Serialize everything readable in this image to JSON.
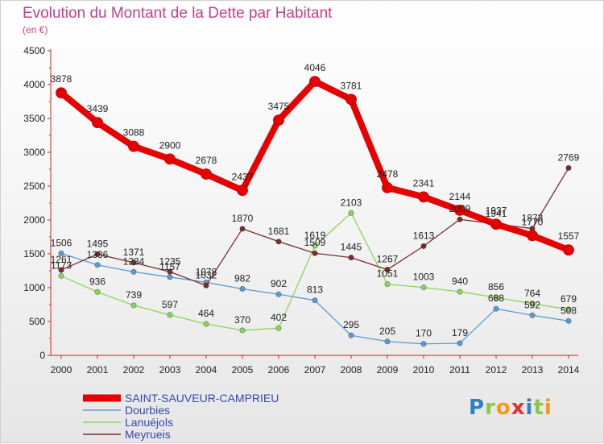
{
  "header": {
    "title": "Evolution du Montant de la Dette par Habitant",
    "subtitle": "(en €)"
  },
  "logo": {
    "text": "Proxiti",
    "colors": [
      "#2f7fc1",
      "#8ac640",
      "#f39a1c",
      "#e5312e",
      "#2f7fc1",
      "#8ac640",
      "#f39a1c"
    ]
  },
  "chart_data": {
    "type": "line",
    "title": "Evolution du Montant de la Dette par Habitant",
    "subtitle": "(en €)",
    "x": [
      "2000",
      "2001",
      "2002",
      "2003",
      "2004",
      "2005",
      "2006",
      "2007",
      "2008",
      "2009",
      "2010",
      "2011",
      "2012",
      "2013",
      "2014"
    ],
    "ylim": [
      0,
      4500
    ],
    "yticks": [
      0,
      500,
      1000,
      1500,
      2000,
      2500,
      3000,
      3500,
      4000,
      4500
    ],
    "grid": false,
    "legend": "bottom-left",
    "series": [
      {
        "name": "SAINT-SAUVEUR-CAMPRIEU",
        "color": "#e60000",
        "values": [
          3878,
          3439,
          3088,
          2900,
          2678,
          2437,
          3475,
          4046,
          3781,
          2478,
          2341,
          2144,
          1937,
          1770,
          1557
        ]
      },
      {
        "name": "Dourbies",
        "color": "#5b9bd5",
        "values": [
          1506,
          1336,
          1234,
          1157,
          1078,
          982,
          902,
          813,
          295,
          205,
          170,
          179,
          688,
          592,
          508
        ]
      },
      {
        "name": "Lanuéjols",
        "color": "#8cd45a",
        "values": [
          1173,
          936,
          739,
          597,
          464,
          370,
          402,
          1619,
          2103,
          1051,
          1003,
          940,
          856,
          764,
          679
        ]
      },
      {
        "name": "Meyrueis",
        "color": "#7b2d2d",
        "values": [
          1261,
          1495,
          1371,
          1235,
          1032,
          1870,
          1681,
          1509,
          1445,
          1267,
          1613,
          2009,
          1941,
          1873,
          2769
        ]
      }
    ]
  }
}
